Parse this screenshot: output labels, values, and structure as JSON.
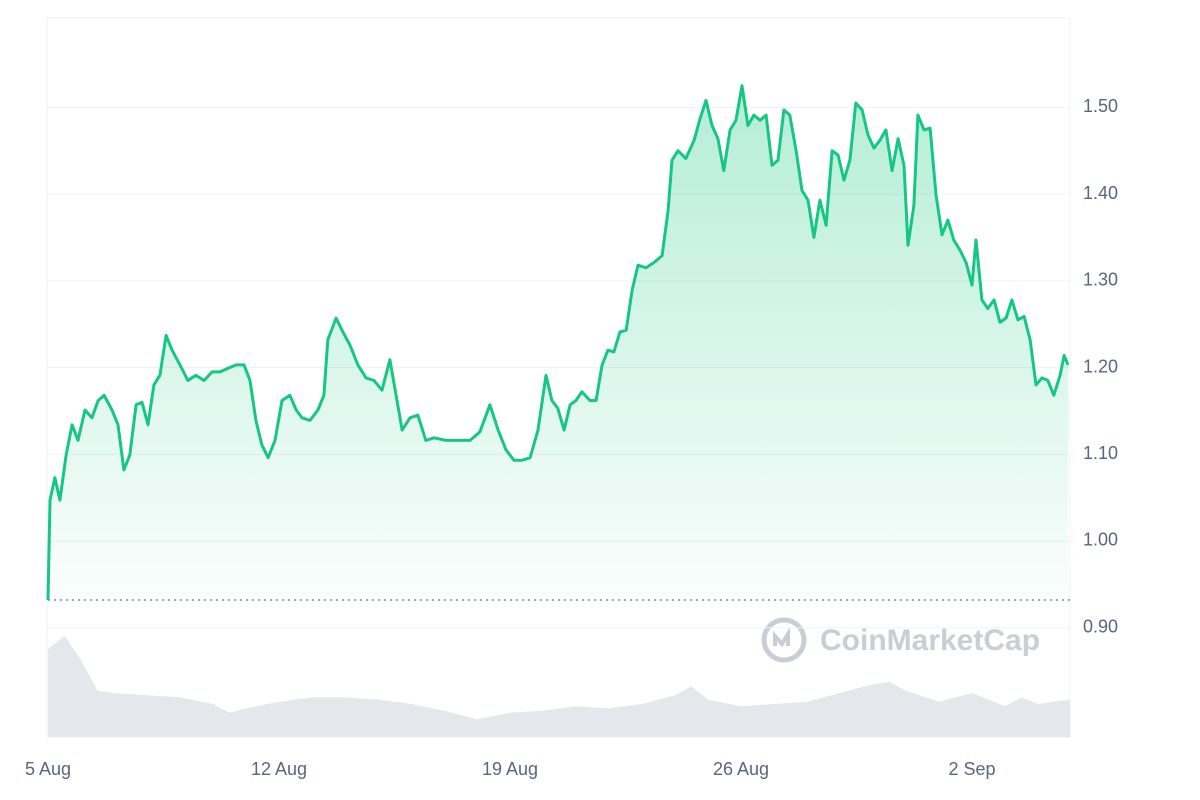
{
  "chart_data": {
    "type": "line",
    "x": [
      0,
      0.06,
      0.21,
      0.36,
      0.55,
      0.73,
      0.91,
      1.12,
      1.33,
      1.52,
      1.7,
      1.94,
      2.12,
      2.3,
      2.48,
      2.67,
      2.85,
      3.03,
      3.21,
      3.39,
      3.58,
      3.76,
      4.0,
      4.24,
      4.48,
      4.73,
      4.97,
      5.21,
      5.45,
      5.7,
      5.94,
      6.12,
      6.3,
      6.48,
      6.67,
      6.88,
      7.09,
      7.33,
      7.52,
      7.7,
      7.94,
      8.18,
      8.36,
      8.48,
      8.73,
      8.91,
      9.15,
      9.39,
      9.64,
      9.88,
      10.12,
      10.36,
      10.55,
      10.73,
      10.97,
      11.21,
      11.45,
      11.7,
      12.06,
      12.48,
      12.79,
      13.09,
      13.39,
      13.64,
      13.88,
      14.12,
      14.36,
      14.61,
      14.85,
      15.09,
      15.27,
      15.45,
      15.64,
      15.82,
      16.0,
      16.18,
      16.42,
      16.61,
      16.79,
      16.97,
      17.15,
      17.33,
      17.52,
      17.7,
      17.88,
      18.12,
      18.36,
      18.61,
      18.79,
      18.91,
      19.09,
      19.33,
      19.58,
      19.76,
      19.94,
      20.12,
      20.3,
      20.48,
      20.67,
      20.85,
      21.03,
      21.21,
      21.39,
      21.58,
      21.76,
      21.94,
      22.12,
      22.3,
      22.48,
      22.67,
      22.85,
      23.03,
      23.21,
      23.39,
      23.58,
      23.76,
      23.94,
      24.12,
      24.3,
      24.48,
      24.67,
      24.85,
      25.03,
      25.21,
      25.39,
      25.58,
      25.76,
      25.94,
      26.06,
      26.24,
      26.36,
      26.55,
      26.73,
      26.91,
      27.09,
      27.27,
      27.45,
      27.64,
      27.82,
      28.0,
      28.12,
      28.3,
      28.48,
      28.67,
      28.85,
      29.03,
      29.21,
      29.39,
      29.58,
      29.76,
      29.94,
      30.12,
      30.3,
      30.48,
      30.67,
      30.79,
      30.91
    ],
    "series": [
      {
        "color": "#16c784",
        "values": [
          0.932,
          1.047,
          1.073,
          1.047,
          1.099,
          1.134,
          1.116,
          1.151,
          1.142,
          1.162,
          1.168,
          1.151,
          1.134,
          1.082,
          1.099,
          1.157,
          1.16,
          1.134,
          1.18,
          1.191,
          1.237,
          1.22,
          1.203,
          1.185,
          1.191,
          1.185,
          1.195,
          1.195,
          1.199,
          1.203,
          1.203,
          1.185,
          1.139,
          1.111,
          1.096,
          1.116,
          1.162,
          1.168,
          1.151,
          1.142,
          1.139,
          1.151,
          1.168,
          1.232,
          1.257,
          1.243,
          1.226,
          1.203,
          1.188,
          1.185,
          1.174,
          1.209,
          1.168,
          1.128,
          1.142,
          1.145,
          1.116,
          1.119,
          1.116,
          1.116,
          1.116,
          1.126,
          1.157,
          1.128,
          1.105,
          1.093,
          1.093,
          1.096,
          1.128,
          1.191,
          1.162,
          1.153,
          1.128,
          1.157,
          1.162,
          1.172,
          1.162,
          1.162,
          1.203,
          1.22,
          1.218,
          1.241,
          1.243,
          1.289,
          1.318,
          1.315,
          1.321,
          1.329,
          1.381,
          1.439,
          1.45,
          1.441,
          1.462,
          1.487,
          1.508,
          1.479,
          1.464,
          1.427,
          1.474,
          1.485,
          1.525,
          1.479,
          1.491,
          1.485,
          1.491,
          1.433,
          1.439,
          1.497,
          1.491,
          1.45,
          1.404,
          1.393,
          1.35,
          1.393,
          1.364,
          1.45,
          1.445,
          1.416,
          1.439,
          1.505,
          1.497,
          1.468,
          1.453,
          1.462,
          1.474,
          1.427,
          1.464,
          1.433,
          1.341,
          1.387,
          1.491,
          1.474,
          1.476,
          1.399,
          1.353,
          1.37,
          1.347,
          1.335,
          1.321,
          1.295,
          1.347,
          1.278,
          1.268,
          1.278,
          1.252,
          1.257,
          1.278,
          1.255,
          1.259,
          1.232,
          1.18,
          1.188,
          1.185,
          1.168,
          1.191,
          1.214,
          1.203
        ]
      }
    ],
    "volume": {
      "color": "#e4e7ec",
      "x": [
        0,
        0.5,
        1,
        1.5,
        2,
        3,
        4,
        5,
        5.5,
        6,
        7,
        8,
        9,
        10,
        11,
        12,
        13,
        14,
        15,
        16,
        17,
        18,
        19,
        19.5,
        20,
        21,
        22,
        23,
        24,
        25,
        25.5,
        26,
        27,
        28,
        29,
        29.5,
        30,
        30.97
      ],
      "values": [
        80,
        92,
        70,
        42,
        40,
        38,
        36,
        30,
        22,
        26,
        32,
        36,
        36,
        34,
        30,
        24,
        16,
        22,
        24,
        28,
        26,
        30,
        38,
        46,
        34,
        28,
        30,
        32,
        40,
        48,
        50,
        42,
        32,
        40,
        28,
        36,
        30,
        34
      ]
    },
    "xlim": [
      0,
      30.97
    ],
    "xticks": [
      {
        "value": 0,
        "label": "5 Aug"
      },
      {
        "value": 7,
        "label": "12 Aug"
      },
      {
        "value": 14,
        "label": "19 Aug"
      },
      {
        "value": 21,
        "label": "26 Aug"
      },
      {
        "value": 28,
        "label": "2 Sep"
      }
    ],
    "ylim": [
      0.774,
      1.603
    ],
    "yticks": [
      {
        "value": 0.9,
        "label": "0.90"
      },
      {
        "value": 1.0,
        "label": "1.00"
      },
      {
        "value": 1.1,
        "label": "1.10"
      },
      {
        "value": 1.2,
        "label": "1.20"
      },
      {
        "value": 1.3,
        "label": "1.30"
      },
      {
        "value": 1.4,
        "label": "1.40"
      },
      {
        "value": 1.5,
        "label": "1.50"
      }
    ],
    "y2lim": [
      0,
      100
    ],
    "grid": true,
    "reference_line": 0.932,
    "watermark": "CoinMarketCap"
  }
}
